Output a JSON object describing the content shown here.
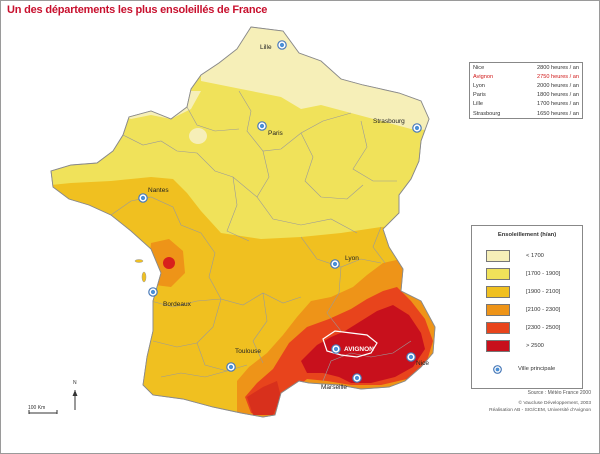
{
  "title": "Un des départements les plus ensoleillés de France",
  "cities": [
    {
      "name": "Lille",
      "marker": "city-marker"
    },
    {
      "name": "Paris",
      "marker": "city-marker"
    },
    {
      "name": "Strasbourg",
      "marker": "city-marker"
    },
    {
      "name": "Nantes",
      "marker": "city-marker"
    },
    {
      "name": "Bordeaux",
      "marker": "city-marker"
    },
    {
      "name": "Lyon",
      "marker": "city-marker"
    },
    {
      "name": "Toulouse",
      "marker": "city-marker"
    },
    {
      "name": "AVIGNON",
      "marker": "city-marker"
    },
    {
      "name": "Marseille",
      "marker": "city-marker"
    },
    {
      "name": "Nice",
      "marker": "city-marker"
    }
  ],
  "sunshine_table": [
    {
      "city": "Nice",
      "value": "2800 heures / an",
      "highlight": false
    },
    {
      "city": "Avignon",
      "value": "2750 heures / an",
      "highlight": true
    },
    {
      "city": "Lyon",
      "value": "2000 heures / an",
      "highlight": false
    },
    {
      "city": "Paris",
      "value": "1800 heures / an",
      "highlight": false
    },
    {
      "city": "Lille",
      "value": "1700 heures / an",
      "highlight": false
    },
    {
      "city": "Strasbourg",
      "value": "1650 heures / an",
      "highlight": false
    }
  ],
  "legend": {
    "title": "Ensoleillement (h/an)",
    "items": [
      {
        "label": "< 1700",
        "color": "#f6efb8"
      },
      {
        "label": "[1700 - 1900]",
        "color": "#f0e25a"
      },
      {
        "label": "[1900 - 2100]",
        "color": "#f0c020"
      },
      {
        "label": "[2100 - 2300]",
        "color": "#ee9418"
      },
      {
        "label": "[2300 - 2500]",
        "color": "#e8441c"
      },
      {
        "label": "> 2500",
        "color": "#c8101c"
      }
    ],
    "marker_label": "Ville principale"
  },
  "source": "Source : Météo France 2000",
  "credit": [
    "© Vaucluse Développement, 2003",
    "Réalisation AB - SIG/CEM, Université d'Avignon"
  ],
  "north_label": "N",
  "scale_label": "100 Km"
}
